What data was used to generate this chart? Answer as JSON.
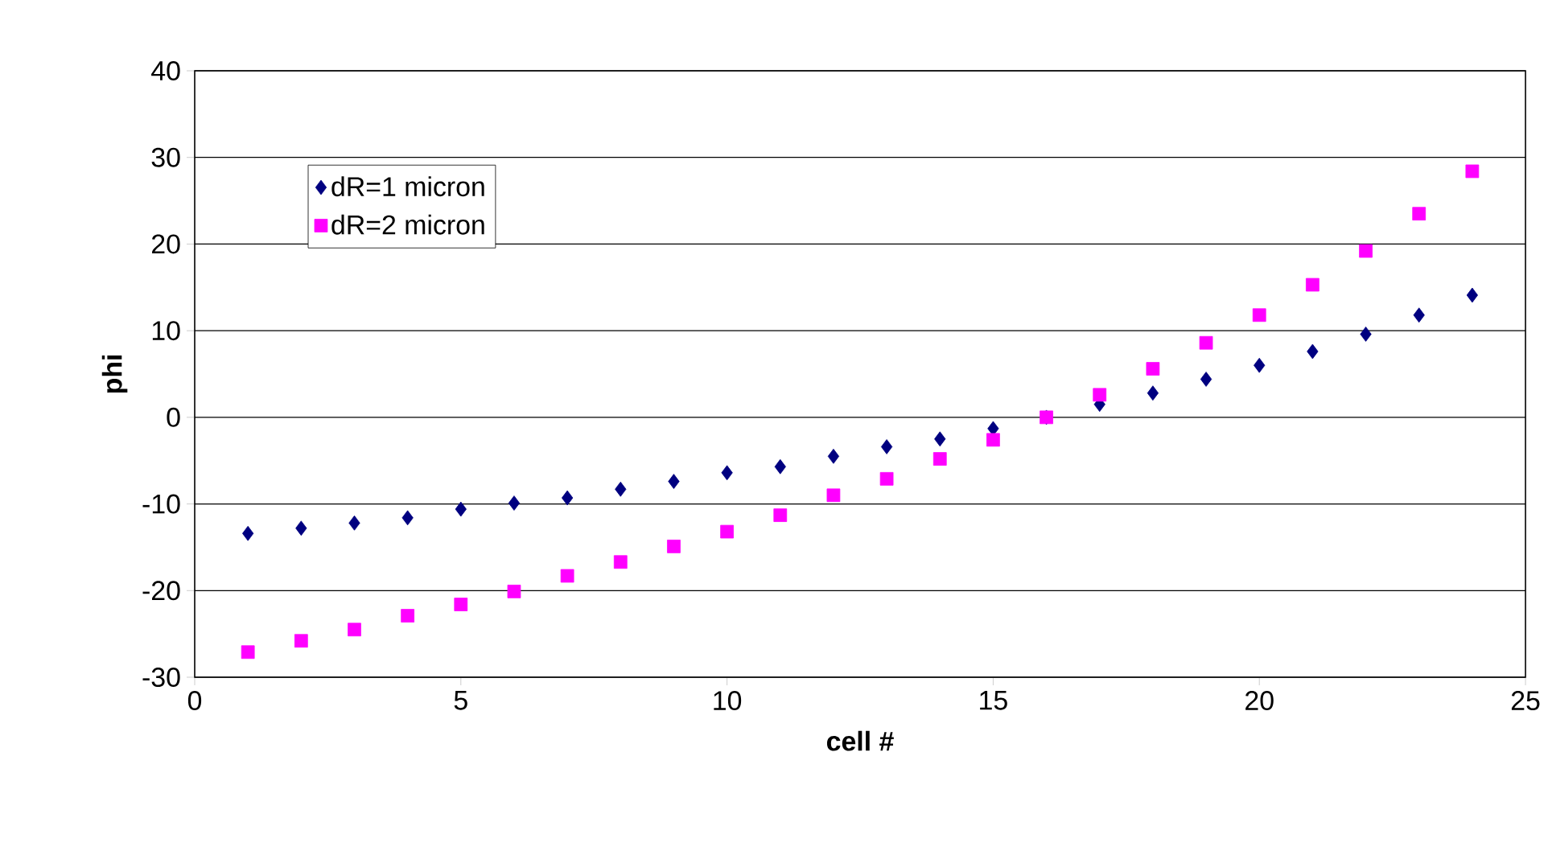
{
  "chart_data": {
    "type": "scatter",
    "xlabel": "cell #",
    "ylabel": "phi",
    "x": [
      1,
      2,
      3,
      4,
      5,
      6,
      7,
      8,
      9,
      10,
      11,
      12,
      13,
      14,
      15,
      16,
      17,
      18,
      19,
      20,
      21,
      22,
      23,
      24
    ],
    "series": [
      {
        "name": "dR=1 micron",
        "color": "#000080",
        "marker": "diamond",
        "values": [
          -13.4,
          -12.8,
          -12.2,
          -11.6,
          -10.6,
          -9.9,
          -9.3,
          -8.3,
          -7.4,
          -6.4,
          -5.7,
          -4.5,
          -3.4,
          -2.5,
          -1.3,
          0,
          1.5,
          2.8,
          4.4,
          6.0,
          7.6,
          9.6,
          11.8,
          14.1
        ]
      },
      {
        "name": "dR=2 micron",
        "color": "#ff00ff",
        "marker": "square",
        "values": [
          -27.1,
          -25.8,
          -24.5,
          -22.9,
          -21.6,
          -20.1,
          -18.3,
          -16.7,
          -14.9,
          -13.2,
          -11.3,
          -9.0,
          -7.1,
          -4.8,
          -2.6,
          0,
          2.6,
          5.6,
          8.6,
          11.8,
          15.3,
          19.2,
          23.5,
          28.4
        ]
      }
    ],
    "xlim": [
      0,
      25
    ],
    "xticks": [
      0,
      5,
      10,
      15,
      20,
      25
    ],
    "ylim": [
      -30,
      40
    ],
    "yticks": [
      -30,
      -20,
      -10,
      0,
      10,
      20,
      30,
      40
    ],
    "grid": "y",
    "legend": "top left"
  }
}
